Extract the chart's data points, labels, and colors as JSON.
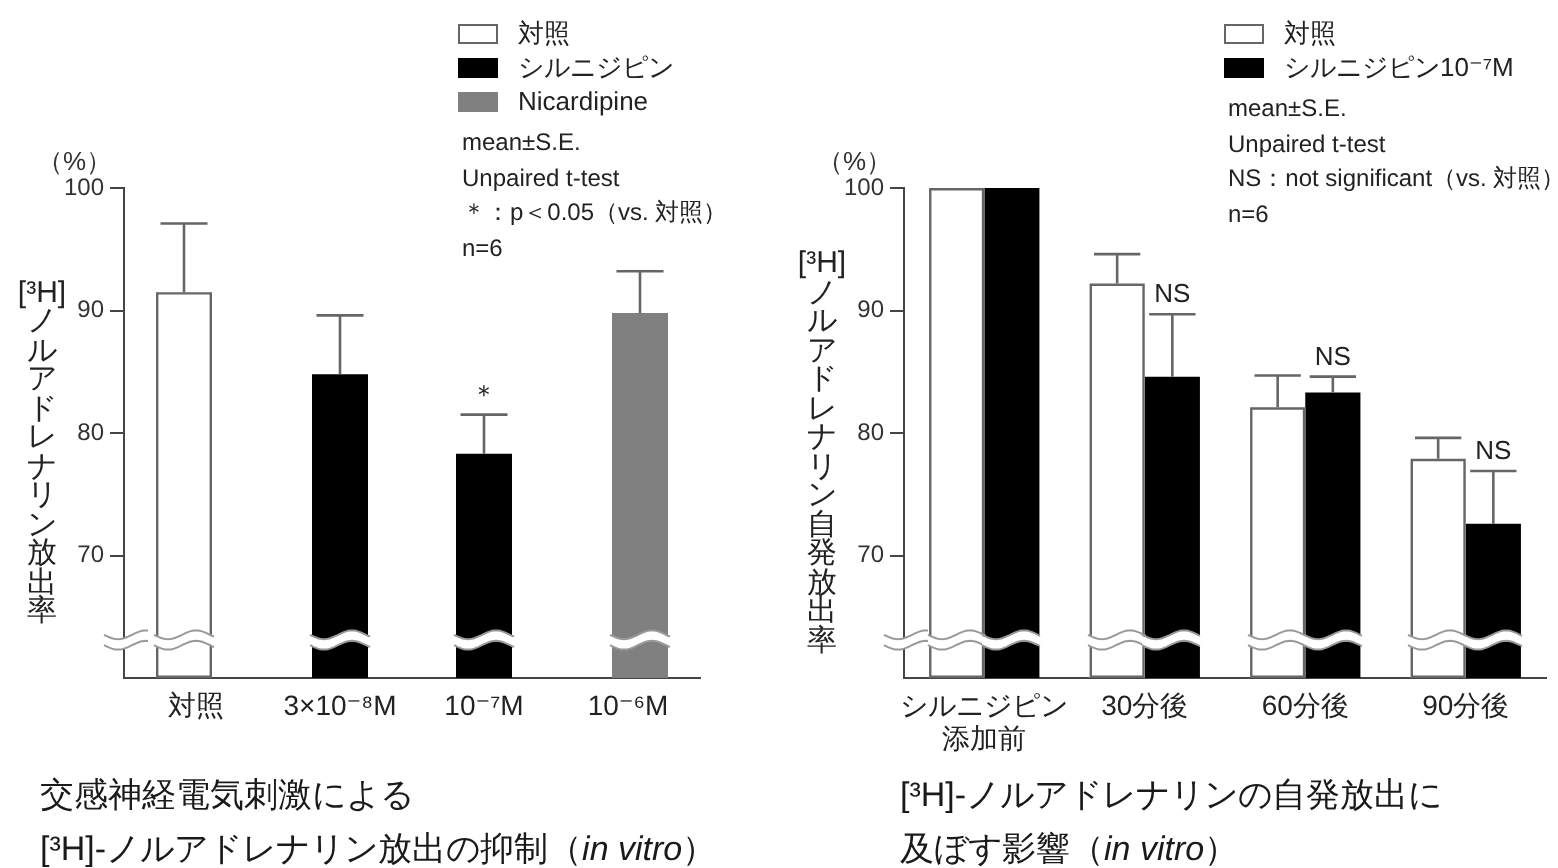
{
  "chart_data": [
    {
      "type": "bar",
      "title": "交感神経電気刺激による\n[³H]-ノルアドレナリン放出の抑制（in vitro）",
      "ylabel": "[³H]ノルアドレナリン放出率",
      "categories": [
        "対照",
        "3×10⁻⁸M",
        "10⁻⁷M",
        "10⁻⁶M"
      ],
      "series": [
        {
          "name": "対照",
          "color": "#ffffff",
          "values": [
            91.5,
            null,
            null,
            null
          ],
          "errors": [
            [
              91.5,
              97.1
            ],
            null,
            null,
            null
          ]
        },
        {
          "name": "シルニジピン",
          "color": "#000000",
          "values": [
            null,
            84.8,
            78.3,
            null
          ],
          "errors": [
            null,
            [
              84.8,
              89.6
            ],
            [
              78.3,
              81.5
            ],
            null
          ]
        },
        {
          "name": "Nicardipine",
          "color": "#808080",
          "values": [
            null,
            null,
            null,
            89.8
          ],
          "errors": [
            null,
            null,
            null,
            [
              89.8,
              93.2
            ]
          ]
        }
      ],
      "ylim": [
        60,
        100
      ],
      "yticks": [
        70,
        80,
        90,
        100
      ],
      "grid": false,
      "legend": "top right",
      "annotations": [
        "（%）",
        "mean±S.E.",
        "Unpaired t-test",
        "＊：p＜0.05（vs. 対照）",
        "n=6",
        {
          "text": "＊",
          "x": "10⁻⁷M",
          "y": 81.5
        }
      ]
    },
    {
      "type": "bar",
      "title": "[³H]-ノルアドレナリンの自発放出に及ぼす影響（in vitro）",
      "ylabel": "[³H]ノルアドレナリン自発放出率",
      "categories": [
        "シルニジピン添加前",
        "30分後",
        "60分後",
        "90分後"
      ],
      "series": [
        {
          "name": "対照",
          "color": "#ffffff",
          "values": [
            100,
            92.2,
            82.1,
            77.9
          ],
          "errors": [
            null,
            [
              92.2,
              94.6
            ],
            [
              82.1,
              84.7
            ],
            [
              77.9,
              79.6
            ]
          ]
        },
        {
          "name": "シルニジピン10⁻⁷M",
          "color": "#000000",
          "values": [
            100,
            84.6,
            83.3,
            72.6
          ],
          "errors": [
            null,
            [
              84.6,
              89.7
            ],
            [
              83.3,
              84.6
            ],
            [
              72.6,
              76.9
            ]
          ]
        }
      ],
      "ylim": [
        60,
        100
      ],
      "yticks": [
        70,
        80,
        90,
        100
      ],
      "grid": false,
      "legend": "top right",
      "annotations": [
        "（%）",
        "mean±S.E.",
        "Unpaired t-test",
        "NS：not significant（vs. 対照）",
        "n=6",
        {
          "text": "NS",
          "x": "30分後",
          "y": 89.7
        },
        {
          "text": "NS",
          "x": "60分後",
          "y": 84.6
        },
        {
          "text": "NS",
          "x": "90分後",
          "y": 76.9
        }
      ]
    }
  ]
}
